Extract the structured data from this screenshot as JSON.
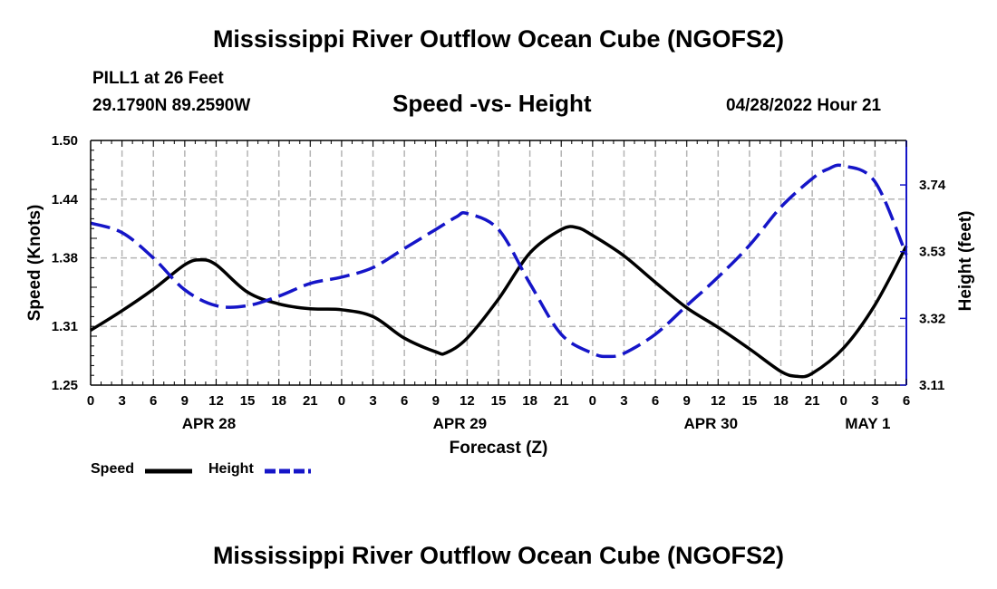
{
  "header": {
    "title": "Mississippi River Outflow Ocean Cube (NGOFS2)",
    "station": "PILL1 at 26 Feet",
    "coordinates": "29.1790N  89.2590W",
    "subtitle": "Speed -vs- Height",
    "datetime": "04/28/2022 Hour 21"
  },
  "footer": {
    "title": "Mississippi River Outflow Ocean Cube (NGOFS2)"
  },
  "legend": {
    "speed_label": "Speed",
    "height_label": "Height"
  },
  "colors": {
    "speed": "#000000",
    "height": "#1515c8",
    "grid": "#b4b4b4"
  },
  "chart_data": {
    "type": "line",
    "xlabel": "Forecast (Z)",
    "ylabel": "Speed (Knots)",
    "y2label": "Height (feet)",
    "xlim": [
      0,
      78
    ],
    "ylim": [
      1.25,
      1.5
    ],
    "y2lim": [
      3.11,
      3.88
    ],
    "yticks": [
      1.25,
      1.31,
      1.38,
      1.44,
      1.5
    ],
    "ytick_labels": [
      "1.25",
      "1.31",
      "1.38",
      "1.44",
      "1.50"
    ],
    "y2ticks": [
      3.11,
      3.32,
      3.53,
      3.74
    ],
    "y2tick_labels": [
      "3.11",
      "3.32",
      "3.53",
      "3.74"
    ],
    "xticks": [
      0,
      3,
      6,
      9,
      12,
      15,
      18,
      21,
      24,
      27,
      30,
      33,
      36,
      39,
      42,
      45,
      48,
      51,
      54,
      57,
      60,
      63,
      66,
      69,
      72,
      75,
      78
    ],
    "xtick_labels": [
      "0",
      "3",
      "6",
      "9",
      "12",
      "15",
      "18",
      "21",
      "0",
      "3",
      "6",
      "9",
      "12",
      "15",
      "18",
      "21",
      "0",
      "3",
      "6",
      "9",
      "12",
      "15",
      "18",
      "21",
      "0",
      "3",
      "6"
    ],
    "date_labels": [
      {
        "x": 12,
        "label": "APR 28"
      },
      {
        "x": 36,
        "label": "APR 29"
      },
      {
        "x": 60,
        "label": "APR 30"
      },
      {
        "x": 75,
        "label": "MAY 1"
      }
    ],
    "grid": true,
    "series": [
      {
        "name": "Speed",
        "axis": "left",
        "style": "solid",
        "x": [
          0,
          3,
          6,
          9,
          10.5,
          12,
          15,
          18,
          21,
          24,
          27,
          30,
          33,
          34,
          36,
          39,
          42,
          45,
          46.5,
          48,
          51,
          54,
          57,
          60,
          63,
          66,
          67.5,
          69,
          72,
          75,
          78
        ],
        "y": [
          1.306,
          1.326,
          1.348,
          1.373,
          1.378,
          1.373,
          1.345,
          1.333,
          1.328,
          1.327,
          1.32,
          1.298,
          1.284,
          1.283,
          1.298,
          1.338,
          1.385,
          1.409,
          1.411,
          1.403,
          1.382,
          1.355,
          1.329,
          1.309,
          1.287,
          1.264,
          1.259,
          1.262,
          1.288,
          1.332,
          1.392
        ]
      },
      {
        "name": "Height",
        "axis": "right",
        "style": "dashed",
        "x": [
          0,
          3,
          6,
          9,
          12,
          15,
          18,
          21,
          24,
          27,
          30,
          33,
          35,
          36,
          39,
          42,
          45,
          48,
          49.5,
          51,
          54,
          57,
          60,
          63,
          66,
          69,
          70.5,
          72,
          75,
          78
        ],
        "y": [
          3.62,
          3.59,
          3.51,
          3.41,
          3.36,
          3.36,
          3.39,
          3.43,
          3.45,
          3.48,
          3.54,
          3.6,
          3.64,
          3.65,
          3.6,
          3.43,
          3.27,
          3.21,
          3.2,
          3.21,
          3.27,
          3.36,
          3.45,
          3.55,
          3.67,
          3.76,
          3.79,
          3.8,
          3.75,
          3.52
        ]
      }
    ]
  }
}
